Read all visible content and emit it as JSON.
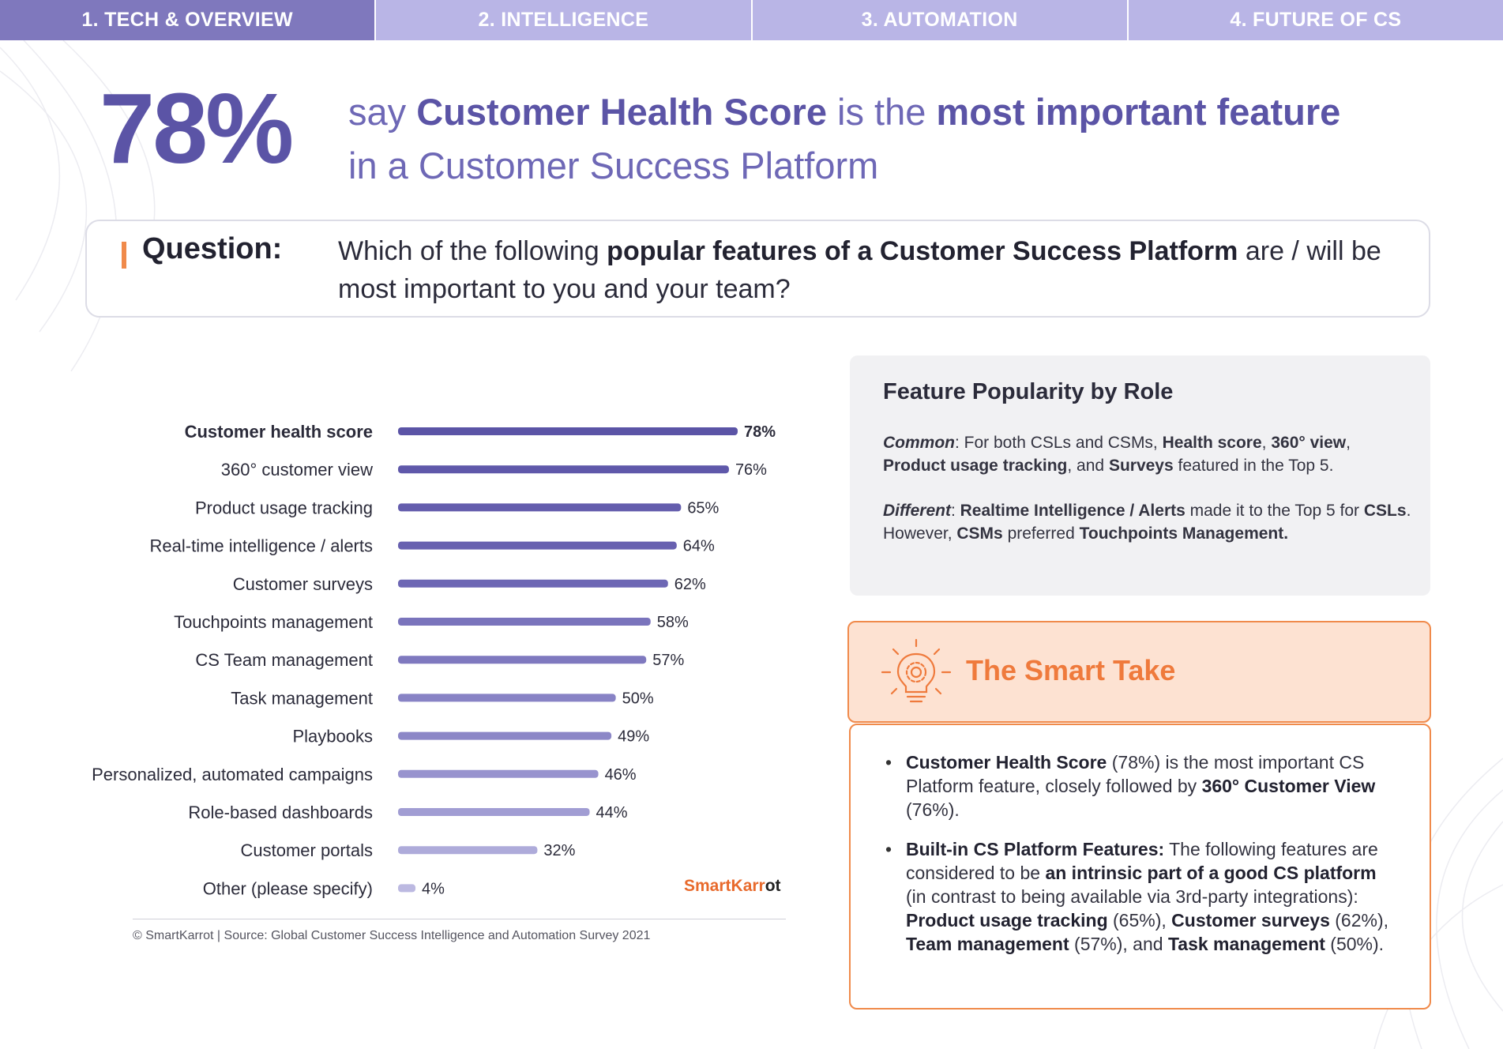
{
  "tabs": [
    {
      "label": "1. TECH & OVERVIEW",
      "active": true
    },
    {
      "label": "2. INTELLIGENCE",
      "active": false
    },
    {
      "label": "3. AUTOMATION",
      "active": false
    },
    {
      "label": "4. FUTURE OF CS",
      "active": false
    }
  ],
  "headline": {
    "big_stat": "78%",
    "t1": "say ",
    "b1": "Customer Health Score",
    "t2": " is the ",
    "b2": "most important feature",
    "t3": "in a Customer Success Platform"
  },
  "question": {
    "label": "Question:",
    "t1": "Which of the following ",
    "b1": "popular features of a Customer Success Platform",
    "t2": " are / will be most important to you and your team?"
  },
  "chart_data": {
    "type": "bar",
    "orientation": "horizontal",
    "categories": [
      "Customer health score",
      "360° customer view",
      "Product usage tracking",
      "Real-time intelligence / alerts",
      "Customer surveys",
      "Touchpoints management",
      "CS Team management",
      "Task management",
      "Playbooks",
      "Personalized, automated campaigns",
      "Role-based dashboards",
      "Customer portals",
      "Other (please specify)"
    ],
    "values": [
      78,
      76,
      65,
      64,
      62,
      58,
      57,
      50,
      49,
      46,
      44,
      32,
      4
    ],
    "value_labels": [
      "78%",
      "76%",
      "65%",
      "64%",
      "62%",
      "58%",
      "57%",
      "50%",
      "49%",
      "46%",
      "44%",
      "32%",
      "4%"
    ],
    "colors": [
      "#5b54a6",
      "#5f58aa",
      "#645dad",
      "#6861b0",
      "#6d67b4",
      "#7a74bc",
      "#7f79bf",
      "#8883c5",
      "#8c87c7",
      "#9893ce",
      "#a19dd3",
      "#aeabda",
      "#bcb9e1"
    ],
    "highlight_index": 0,
    "xlim": [
      0,
      80
    ]
  },
  "brand": {
    "a": "SmartKarr",
    "b": "ot"
  },
  "source": "© SmartKarrot | Source: Global Customer Success Intelligence and Automation Survey 2021",
  "popularity": {
    "title": "Feature Popularity by Role",
    "common_label": "Common",
    "common_t1": ": For both CSLs and CSMs, ",
    "common_b1": "Health score",
    "common_t2": ", ",
    "common_b2": "360° view",
    "common_t3": ", ",
    "common_b3": "Product usage tracking",
    "common_t4": ", and ",
    "common_b4": "Surveys",
    "common_t5": " featured in the Top 5.",
    "diff_label": "Different",
    "diff_t1": ": ",
    "diff_b1": "Realtime Intelligence / Alerts",
    "diff_t2": " made it to the Top 5 for ",
    "diff_b2": "CSLs",
    "diff_t3": ". However, ",
    "diff_b3": "CSMs",
    "diff_t4": " preferred ",
    "diff_b4": "Touchpoints Management."
  },
  "smart_take": {
    "title": "The Smart Take",
    "icon": "lightbulb-gear-icon",
    "b1_b1": "Customer Health Score",
    "b1_t1": " (78%) is the most important CS Platform feature, closely followed by ",
    "b1_b2": "360° Customer View",
    "b1_t2": " (76%).",
    "b2_b1": "Built-in CS Platform Features:",
    "b2_t1": " The following features are considered to be ",
    "b2_b2": "an intrinsic part of a good CS platform",
    "b2_t2": " (in contrast to being available via 3rd-party integrations): ",
    "b2_b3": "Product usage tracking",
    "b2_t3": " (65%), ",
    "b2_b4": "Customer surveys",
    "b2_t4": " (62%), ",
    "b2_b5": "Team management",
    "b2_t5": " (57%), and ",
    "b2_b6": "Task management",
    "b2_t6": " (50%)."
  },
  "colors": {
    "tab_active": "#7f78bd",
    "tab_inactive": "#b9b5e6",
    "headline": "#5b54a6",
    "accent_orange": "#f08a4b",
    "smart_take_fill": "#fde2d2"
  }
}
